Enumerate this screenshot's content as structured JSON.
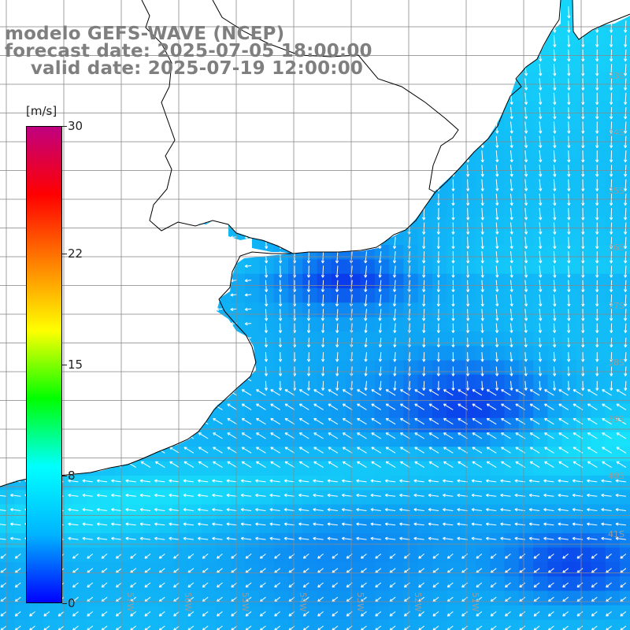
{
  "title": {
    "line1": "modelo GEFS-WAVE (NCEP)",
    "line2": "forecast date: 2025-07-05 18:00:00",
    "line3": "    valid date: 2025-07-19 12:00:00"
  },
  "colorbar": {
    "unit": "[m/s]",
    "ticks": [
      "30",
      "22",
      "15",
      "8",
      "0"
    ],
    "tick_values": [
      30,
      22,
      15,
      8,
      0
    ],
    "min": 0,
    "max": 30,
    "stops": [
      "#0000ff",
      "#00b4ff",
      "#00ffff",
      "#00ff00",
      "#ffff00",
      "#ff8000",
      "#ff0000",
      "#c00080"
    ]
  },
  "map": {
    "variable": "wind speed with direction arrows",
    "ocean_color_low": "#0a32ea",
    "ocean_color_mid": "#0ea4f5",
    "ocean_color_high": "#18e4fb",
    "land_color": "#ffffff",
    "coastline_color": "#000000",
    "grid_color": "#888888",
    "arrow_color": "#ffffff",
    "lat_labels": [
      "33S",
      "34S",
      "35S",
      "36S",
      "37S",
      "38S",
      "39S",
      "40S",
      "41S"
    ],
    "lon_labels": [
      "57W",
      "56W",
      "55W",
      "54W",
      "53W",
      "52W",
      "51W"
    ]
  }
}
